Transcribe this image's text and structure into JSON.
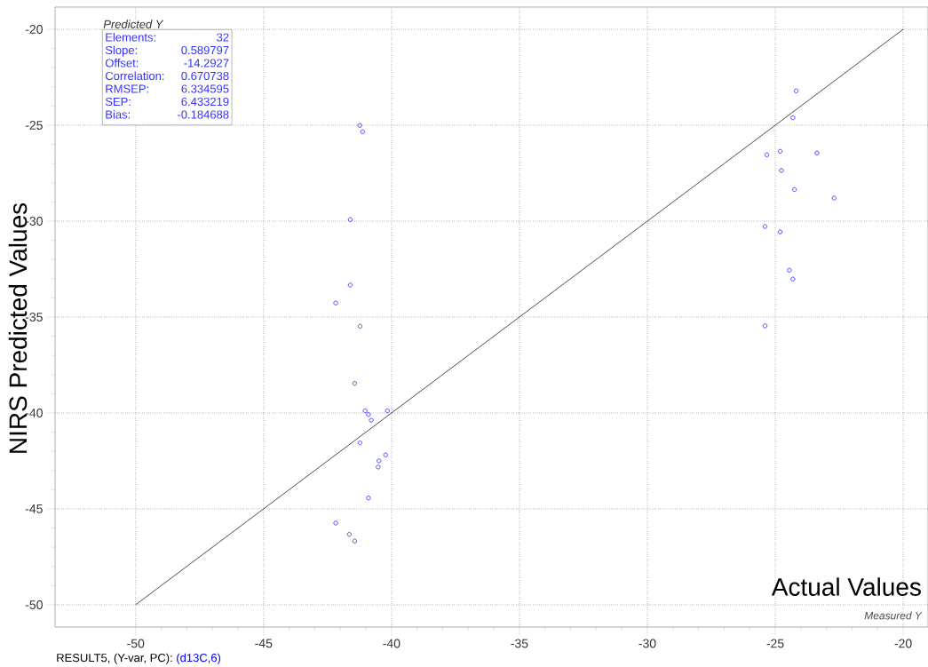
{
  "chart_data": {
    "type": "scatter",
    "xlabel": "Actual Values",
    "ylabel": "NIRS Predicted Values",
    "xlim": [
      -53.15,
      -19.03
    ],
    "ylim": [
      -51.16,
      -18.84
    ],
    "xticks": [
      -50,
      -45,
      -40,
      -35,
      -30,
      -25,
      -20
    ],
    "yticks": [
      -50,
      -45,
      -40,
      -35,
      -30,
      -25,
      -20
    ],
    "grid": true,
    "series": [
      {
        "color": "#3333ff",
        "marker": "circle",
        "x": [
          -41.24,
          -41.13,
          -41.61,
          -41.61,
          -42.18,
          -41.23,
          -41.44,
          -41.03,
          -40.9,
          -40.79,
          -40.16,
          -41.23,
          -40.23,
          -40.49,
          -40.52,
          -40.9,
          -42.18,
          -41.65,
          -41.44,
          -24.18,
          -24.31,
          -24.81,
          -25.33,
          -23.37,
          -24.76,
          -24.25,
          -22.7,
          -25.4,
          -24.81,
          -24.45,
          -24.31,
          -25.4
        ],
        "values": [
          -25.01,
          -25.34,
          -29.92,
          -33.33,
          -34.27,
          -35.48,
          -38.46,
          -39.89,
          -40.08,
          -40.38,
          -39.89,
          -41.56,
          -42.19,
          -42.5,
          -42.82,
          -44.43,
          -45.74,
          -46.33,
          -46.68,
          -23.21,
          -24.61,
          -26.36,
          -26.54,
          -26.45,
          -27.36,
          -28.35,
          -28.8,
          -30.28,
          -30.56,
          -32.56,
          -33.02,
          -35.46
        ]
      },
      {
        "type": "line",
        "marker": "none",
        "color": "#000000",
        "x": [
          -50,
          -20
        ],
        "values": [
          -50,
          -20
        ]
      }
    ],
    "annotations": [
      "Predicted Y",
      "Elements:",
      "32",
      "Slope:",
      "0.589797",
      "Offset:",
      "-14.2927",
      "Correlation:",
      "0.670738",
      "RMSEP:",
      "6.334595",
      "SEP:",
      "6.433219",
      "Bias:",
      "-0.184688",
      "Measured Y",
      "RESULT5, (Y-var, PC):",
      "(d13C,6)"
    ]
  }
}
